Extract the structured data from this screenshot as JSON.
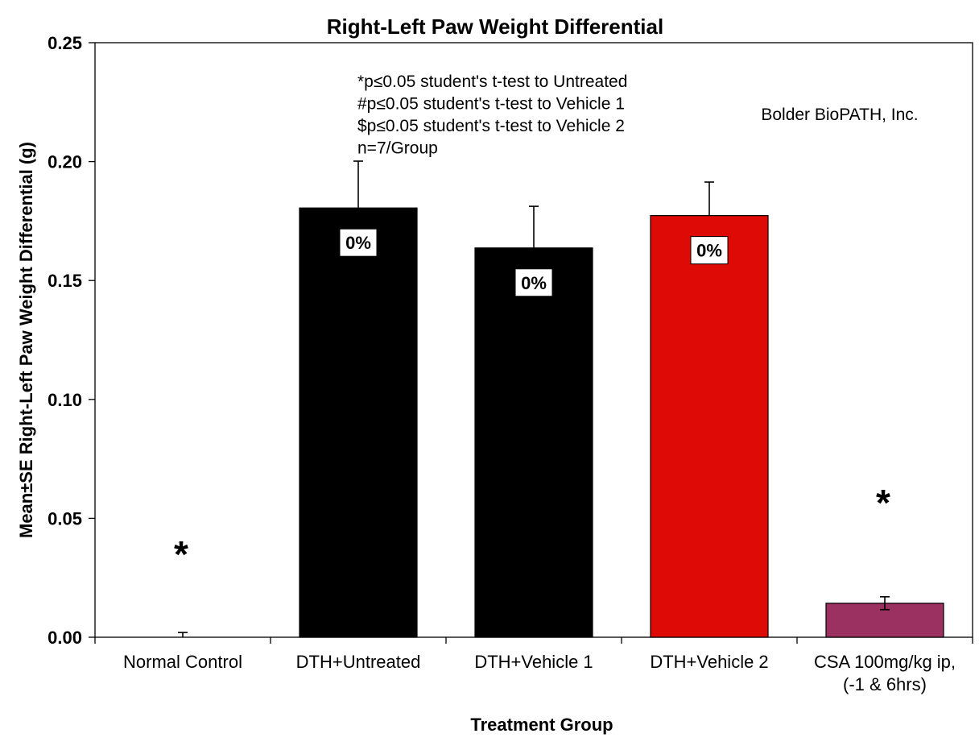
{
  "chart_data": {
    "type": "bar",
    "title": "Right-Left Paw Weight Differential",
    "xlabel": "Treatment Group",
    "ylabel": "Mean±SE Right-Left Paw Weight Differential (g)",
    "ylim": [
      0,
      0.25
    ],
    "yticks": [
      "0.00",
      "0.05",
      "0.10",
      "0.15",
      "0.20",
      "0.25"
    ],
    "grid": false,
    "categories": [
      [
        "Normal Control"
      ],
      [
        "DTH+Untreated"
      ],
      [
        "DTH+Vehicle 1"
      ],
      [
        "DTH+Vehicle 2"
      ],
      [
        "CSA 100mg/kg ip,",
        "(-1 & 6hrs)"
      ]
    ],
    "values": [
      0.0,
      0.1805,
      0.1637,
      0.1773,
      0.0143
    ],
    "errors": [
      0.002,
      0.0197,
      0.0175,
      0.0141,
      0.0027
    ],
    "colors": [
      "#000000",
      "#000000",
      "#000000",
      "#dd0a06",
      "#9a3160"
    ],
    "data_labels": [
      "",
      "0%",
      "0%",
      "0%",
      ""
    ],
    "significance_markers": [
      "*",
      "",
      "",
      "",
      "*"
    ],
    "annotations": [
      "*p≤0.05 student's t-test to Untreated",
      "#p≤0.05 student's t-test to Vehicle 1",
      "$p≤0.05 student's t-test to Vehicle 2",
      "n=7/Group"
    ],
    "watermark": "Bolder BioPATH, Inc."
  }
}
